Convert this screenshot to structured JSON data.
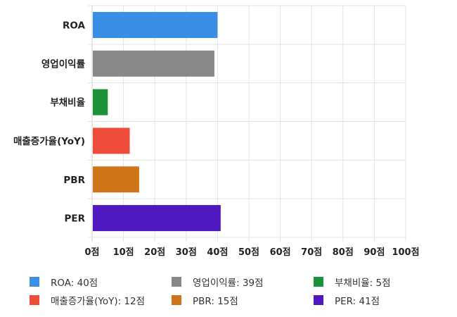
{
  "chart_data": {
    "type": "bar",
    "orientation": "horizontal",
    "title": "",
    "xlabel": "",
    "ylabel": "",
    "categories": [
      "ROA",
      "영업이익률",
      "부채비율",
      "매출증가율(YoY)",
      "PBR",
      "PER"
    ],
    "values": [
      40,
      39,
      5,
      12,
      15,
      41
    ],
    "colors": [
      "#3a8ee6",
      "#888888",
      "#1a9338",
      "#ef4b3b",
      "#cf7419",
      "#4f17c0"
    ],
    "xlim": [
      0,
      100
    ],
    "x_ticks": [
      0,
      10,
      20,
      30,
      40,
      50,
      60,
      70,
      80,
      90,
      100
    ],
    "x_tick_labels": [
      "0점",
      "10점",
      "20점",
      "30점",
      "40점",
      "50점",
      "60점",
      "70점",
      "80점",
      "90점",
      "100점"
    ],
    "grid": true,
    "legend_position": "bottom",
    "legend_entries": [
      "ROA: 40점",
      "영업이익률: 39점",
      "부채비율: 5점",
      "매출증가율(YoY): 12점",
      "PBR: 15점",
      "PER: 41점"
    ]
  }
}
